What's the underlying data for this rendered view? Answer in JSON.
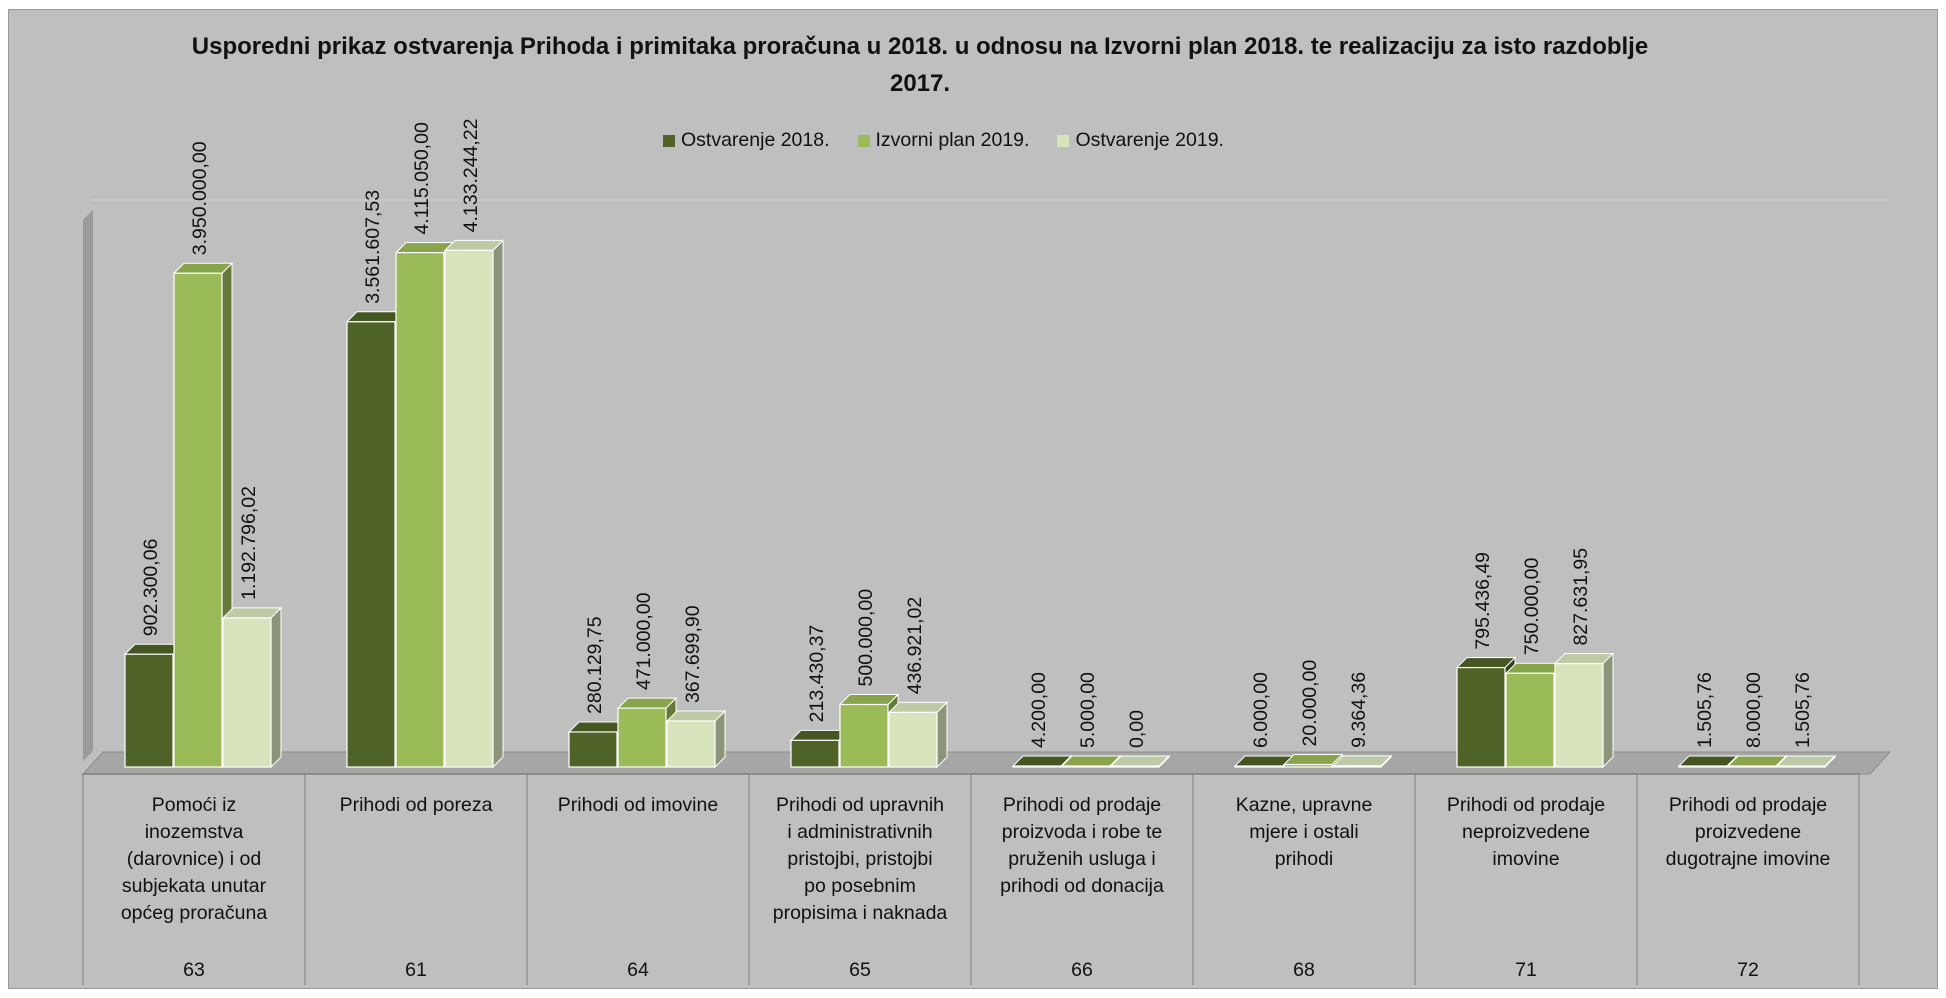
{
  "chart_data": {
    "type": "bar",
    "title": "Usporedni prikaz ostvarenja Prihoda i primitaka proračuna u 2018. u odnosu na Izvorni plan 2018. te realizaciju za isto razdoblje 2017.",
    "xlabel": "",
    "ylabel": "",
    "ylim": [
      0,
      4500000
    ],
    "grid": false,
    "legend_position": "top",
    "style": "3d-clustered-column",
    "categories": [
      "Pomoći iz inozemstva (darovnice) i od subjekata unutar općeg proračuna",
      "Prihodi od poreza",
      "Prihodi od imovine",
      "Prihodi od upravnih i administrativnih pristojbi, pristojbi po posebnim propisima i naknada",
      "Prihodi od prodaje proizvoda i robe te pruženih usluga i prihodi od donacija",
      "Kazne, upravne mjere i ostali prihodi",
      "Prihodi od prodaje neproizvedene imovine",
      "Prihodi od prodaje proizvedene dugotrajne imovine"
    ],
    "category_lines": [
      [
        "Pomoći iz",
        "inozemstva",
        "(darovnice) i od",
        "subjekata unutar",
        "općeg proračuna"
      ],
      [
        "Prihodi od poreza"
      ],
      [
        "Prihodi od imovine"
      ],
      [
        "Prihodi od upravnih",
        "i administrativnih",
        "pristojbi, pristojbi",
        "po posebnim",
        "propisima i naknada"
      ],
      [
        "Prihodi od prodaje",
        "proizvoda i robe te",
        "pruženih usluga i",
        "prihodi od donacija"
      ],
      [
        "Kazne, upravne",
        "mjere i ostali",
        "prihodi"
      ],
      [
        "Prihodi od prodaje",
        "neproizvedene",
        "imovine"
      ],
      [
        "Prihodi od prodaje",
        "proizvedene",
        "dugotrajne imovine"
      ]
    ],
    "codes": [
      "63",
      "61",
      "64",
      "65",
      "66",
      "68",
      "71",
      "72"
    ],
    "series": [
      {
        "name": "Ostvarenje 2018.",
        "color": "#4f6228",
        "values": [
          902300.06,
          3561607.53,
          280129.75,
          213430.37,
          4200.0,
          6000.0,
          795436.49,
          1505.76
        ],
        "labels": [
          "902.300,06",
          "3.561.607,53",
          "280.129,75",
          "213.430,37",
          "4.200,00",
          "6.000,00",
          "795.436,49",
          "1.505,76"
        ]
      },
      {
        "name": "Izvorni plan 2019.",
        "color": "#9bbb59",
        "values": [
          3950000.0,
          4115050.0,
          471000.0,
          500000.0,
          5000.0,
          20000.0,
          750000.0,
          8000.0
        ],
        "labels": [
          "3.950.000,00",
          "4.115.050,00",
          "471.000,00",
          "500.000,00",
          "5.000,00",
          "20.000,00",
          "750.000,00",
          "8.000,00"
        ]
      },
      {
        "name": "Ostvarenje 2019.",
        "color": "#d8e4bc",
        "values": [
          1192796.02,
          4133244.22,
          367699.9,
          436921.02,
          0.0,
          9364.36,
          827631.95,
          1505.76
        ],
        "labels": [
          "1.192.796,02",
          "4.133.244,22",
          "367.699,90",
          "436.921,02",
          "0,00",
          "9.364,36",
          "827.631,95",
          "1.505,76"
        ]
      }
    ]
  }
}
